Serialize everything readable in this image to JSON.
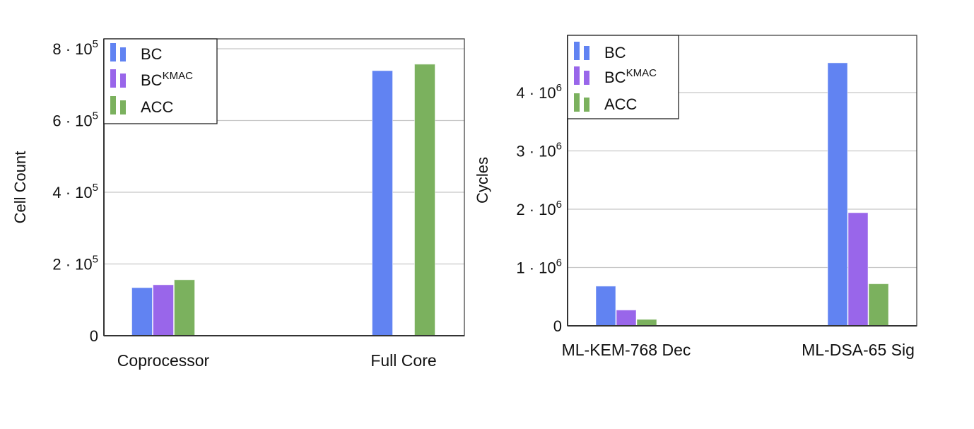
{
  "chart_data": [
    {
      "type": "bar",
      "xlabel": "",
      "ylabel": "Cell Count",
      "categories": [
        "Coprocessor",
        "Full Core"
      ],
      "ylim": [
        0,
        820000
      ],
      "yticks": [
        0,
        200000,
        400000,
        600000,
        800000
      ],
      "ytick_labels": [
        {
          "base": "0",
          "exp": ""
        },
        {
          "base": "2 · 10",
          "exp": "5"
        },
        {
          "base": "4 · 10",
          "exp": "5"
        },
        {
          "base": "6 · 10",
          "exp": "5"
        },
        {
          "base": "8 · 10",
          "exp": "5"
        }
      ],
      "grid": true,
      "legend_placement": "top-left",
      "series": [
        {
          "name": "BC",
          "name_sup": "",
          "color": "#6183f2",
          "values": [
            134000,
            739000
          ]
        },
        {
          "name": "BC",
          "name_sup": "KMAC",
          "color": "#9966ea",
          "values": [
            142000,
            null
          ]
        },
        {
          "name": "ACC",
          "name_sup": "",
          "color": "#7bb15e",
          "values": [
            156000,
            757000
          ]
        }
      ]
    },
    {
      "type": "bar",
      "xlabel": "",
      "ylabel": "Cycles",
      "categories": [
        "ML-KEM-768 Dec",
        "ML-DSA-65 Sig"
      ],
      "ylim": [
        0,
        5000000
      ],
      "yticks": [
        0,
        1000000,
        2000000,
        3000000,
        4000000
      ],
      "ytick_labels": [
        {
          "base": "0",
          "exp": ""
        },
        {
          "base": "1 · 10",
          "exp": "6"
        },
        {
          "base": "2 · 10",
          "exp": "6"
        },
        {
          "base": "3 · 10",
          "exp": "6"
        },
        {
          "base": "4 · 10",
          "exp": "6"
        }
      ],
      "grid": true,
      "legend_placement": "top-left",
      "series": [
        {
          "name": "BC",
          "name_sup": "",
          "color": "#6183f2",
          "values": [
            680000,
            4510000
          ]
        },
        {
          "name": "BC",
          "name_sup": "KMAC",
          "color": "#9966ea",
          "values": [
            270000,
            1940000
          ]
        },
        {
          "name": "ACC",
          "name_sup": "",
          "color": "#7bb15e",
          "values": [
            110000,
            720000
          ]
        }
      ]
    }
  ]
}
